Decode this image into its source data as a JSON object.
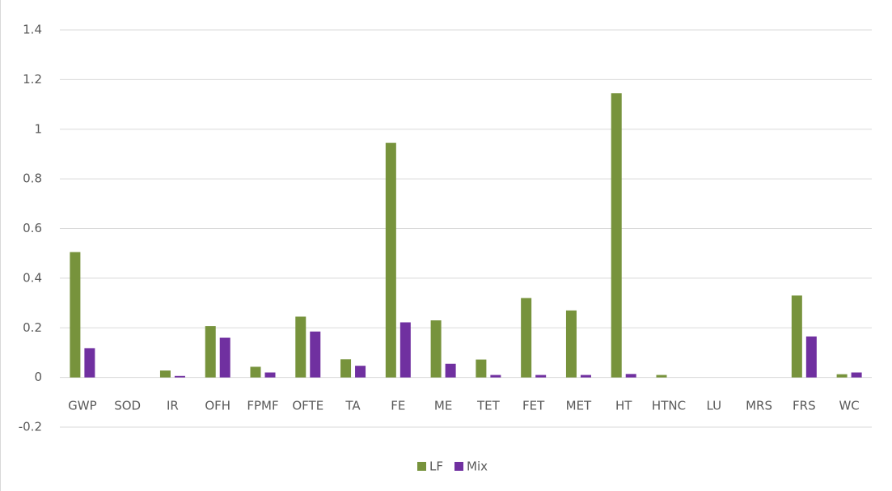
{
  "chart_data": {
    "type": "bar",
    "categories": [
      "GWP",
      "SOD",
      "IR",
      "OFH",
      "FPMF",
      "OFTE",
      "TA",
      "FE",
      "ME",
      "TET",
      "FET",
      "MET",
      "HT",
      "HTNC",
      "LU",
      "MRS",
      "FRS",
      "WC"
    ],
    "series": [
      {
        "name": "LF",
        "color": "#77933c",
        "values": [
          0.505,
          0,
          0.028,
          0.207,
          0.043,
          0.245,
          0.073,
          0.945,
          0.23,
          0.072,
          0.32,
          0.27,
          1.145,
          0.01,
          0,
          0,
          0.33,
          0.013
        ]
      },
      {
        "name": "Mix",
        "color": "#7030a0",
        "values": [
          0.118,
          0,
          0.006,
          0.16,
          0.02,
          0.185,
          0.047,
          0.222,
          0.055,
          0.01,
          0.01,
          0.01,
          0.014,
          0,
          0,
          0,
          0.165,
          0.02
        ]
      }
    ],
    "ylim": [
      -0.2,
      1.4
    ],
    "yticks": [
      -0.2,
      0,
      0.2,
      0.4,
      0.6,
      0.8,
      1,
      1.2,
      1.4
    ],
    "grid": true,
    "legend": "bottom"
  }
}
